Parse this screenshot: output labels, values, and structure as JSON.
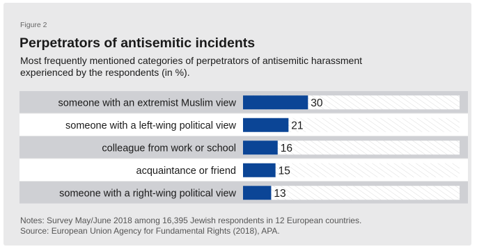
{
  "figure_label": "Figure 2",
  "title": "Perpetrators of antisemitic incidents",
  "subtitle": "Most frequently mentioned categories of perpetrators of antisemitic harassment experienced by the respondents (in %).",
  "notes": {
    "line1": "Notes: Survey May/June 2018 among 16,395 Jewish respondents in 12 European countries.",
    "line2": "Source: European Union Agency for Fundamental Rights (2018), APA."
  },
  "colors": {
    "bar": "#0b4596",
    "row_shaded": "#cfd0d4",
    "row_plain": "#ffffff",
    "hatch_bg": "#ffffff",
    "hatch_line": "#dcdcdc"
  },
  "chart_data": {
    "type": "bar",
    "orientation": "horizontal",
    "title": "Perpetrators of antisemitic incidents",
    "categories": [
      "someone with an extremist Muslim view",
      "someone with a left-wing political view",
      "colleague from work or school",
      "acquaintance or friend",
      "someone with a right-wing political view"
    ],
    "values": [
      30,
      21,
      16,
      15,
      13
    ],
    "unit": "%",
    "xlim": [
      0,
      100
    ],
    "grid": false,
    "legend": "none"
  }
}
